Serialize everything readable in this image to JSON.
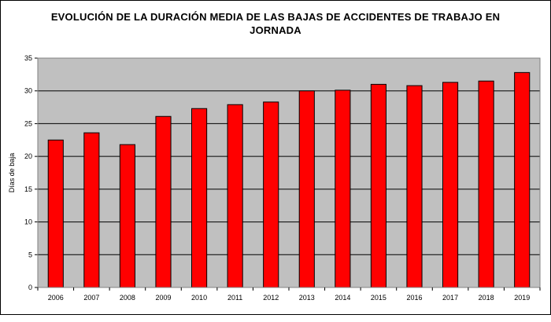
{
  "chart_data": {
    "type": "bar",
    "title": "EVOLUCIÓN DE LA DURACIÓN MEDIA DE LAS BAJAS DE ACCIDENTES DE TRABAJO EN JORNADA",
    "ylabel": "Días de baja",
    "xlabel": "",
    "categories": [
      "2006",
      "2007",
      "2008",
      "2009",
      "2010",
      "2011",
      "2012",
      "2013",
      "2014",
      "2015",
      "2016",
      "2017",
      "2018",
      "2019"
    ],
    "values": [
      22.5,
      23.6,
      21.8,
      26.1,
      27.3,
      27.9,
      28.3,
      30.0,
      30.1,
      31.0,
      30.8,
      31.3,
      31.5,
      32.8
    ],
    "ylim": [
      0,
      35
    ],
    "yticks": [
      0,
      5,
      10,
      15,
      20,
      25,
      30,
      35
    ],
    "grid": true,
    "legend": "none",
    "colors": {
      "bar": "#ff0000",
      "plot_bg": "#c0c0c0",
      "grid": "#000000"
    }
  }
}
